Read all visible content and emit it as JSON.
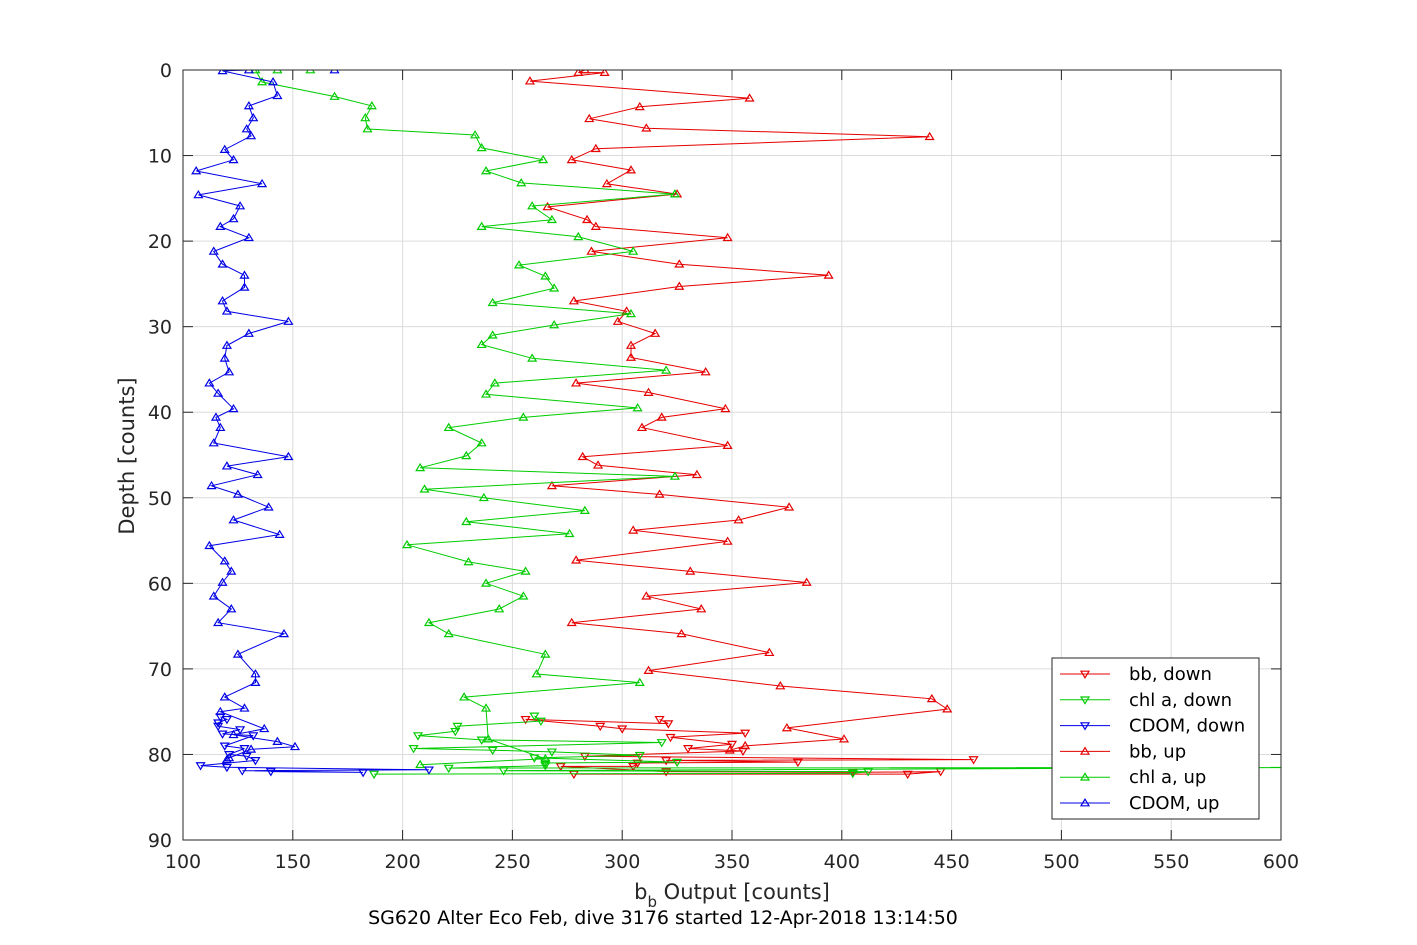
{
  "chart_data": {
    "type": "line",
    "caption": "SG620 Alter Eco Feb, dive 3176 started 12-Apr-2018 13:14:50",
    "xlabel_main": "b",
    "xlabel_sub": "b",
    "xlabel_rest": " Output [counts]",
    "ylabel": "Depth [counts]",
    "xlim": [
      100,
      600
    ],
    "ylim": [
      0,
      90
    ],
    "y_reversed": true,
    "grid": true,
    "xticks": [
      100,
      150,
      200,
      250,
      300,
      350,
      400,
      450,
      500,
      550,
      600
    ],
    "yticks": [
      0,
      10,
      20,
      30,
      40,
      50,
      60,
      70,
      80,
      90
    ],
    "legend_position": "bottom-right",
    "series": [
      {
        "name": "bb, down",
        "color": "#e60000",
        "marker": "triangle-down",
        "x": [
          317,
          321,
          256,
          290,
          300,
          356,
          322,
          350,
          330,
          355,
          283,
          460,
          320,
          380,
          307,
          305,
          272,
          320,
          405,
          445,
          430,
          278
        ],
        "y": [
          75.9,
          76.4,
          75.9,
          76.7,
          77.0,
          77.5,
          78.0,
          78.8,
          79.3,
          79.6,
          80.2,
          80.6,
          80.7,
          80.9,
          81.0,
          81.4,
          81.4,
          82.0,
          82.1,
          82.0,
          82.3,
          82.3
        ]
      },
      {
        "name": "chl a, down",
        "color": "#00cc00",
        "marker": "triangle-down",
        "x": [
          260,
          263,
          225,
          224,
          207,
          236,
          318,
          205,
          241,
          268,
          308,
          260,
          325,
          265,
          265,
          221,
          630,
          246,
          412,
          405,
          187
        ],
        "y": [
          75.5,
          76.1,
          76.7,
          77.3,
          77.8,
          78.3,
          78.6,
          79.3,
          79.5,
          79.7,
          80.1,
          80.4,
          80.9,
          81.0,
          81.3,
          81.6,
          81.5,
          81.9,
          82.0,
          82.2,
          82.3
        ]
      },
      {
        "name": "CDOM, down",
        "color": "#0000e6",
        "marker": "triangle-down",
        "x": [
          117,
          120,
          116,
          116,
          126,
          118,
          132,
          119,
          128,
          121,
          129,
          133,
          108,
          120,
          212,
          127,
          182,
          140
        ],
        "y": [
          75.6,
          75.9,
          76.3,
          76.7,
          77.1,
          77.6,
          77.8,
          79.0,
          79.3,
          80.0,
          80.2,
          80.7,
          81.3,
          81.5,
          81.8,
          81.9,
          82.1,
          82.0
        ]
      },
      {
        "name": "bb, up",
        "color": "#e60000",
        "marker": "triangle-up",
        "x": [
          283,
          280,
          292,
          258,
          358,
          308,
          285,
          311,
          440,
          288,
          277,
          304,
          293,
          325,
          266,
          284,
          288,
          348,
          286,
          326,
          394,
          326,
          278,
          302,
          298,
          315,
          304,
          304,
          338,
          279,
          312,
          347,
          318,
          309,
          348,
          282,
          289,
          334,
          268,
          317,
          376,
          353,
          305,
          348,
          279,
          331,
          384,
          311,
          336,
          277,
          327,
          367,
          312,
          372,
          441,
          448,
          375,
          401,
          356,
          349
        ],
        "y": [
          0,
          0.3,
          0.3,
          1.3,
          3.3,
          4.3,
          5.7,
          6.8,
          7.8,
          9.2,
          10.5,
          11.7,
          13.3,
          14.5,
          16.0,
          17.5,
          18.3,
          19.6,
          21.2,
          22.7,
          24.0,
          25.3,
          27.0,
          28.2,
          29.4,
          30.8,
          32.2,
          33.6,
          35.3,
          36.6,
          37.7,
          39.6,
          40.6,
          41.8,
          43.9,
          45.2,
          46.2,
          47.3,
          48.6,
          49.6,
          51.1,
          52.6,
          53.8,
          55.1,
          57.3,
          58.6,
          59.9,
          61.5,
          63.0,
          64.6,
          65.9,
          68.1,
          70.2,
          72.0,
          73.5,
          74.7,
          76.9,
          78.2,
          79.0,
          79.5
        ]
      },
      {
        "name": "chl a, up",
        "color": "#00cc00",
        "marker": "triangle-up",
        "x": [
          158,
          143,
          133,
          136,
          169,
          186,
          183,
          184,
          233,
          236,
          264,
          238,
          254,
          324,
          259,
          268,
          236,
          280,
          305,
          253,
          265,
          269,
          241,
          304,
          269,
          241,
          236,
          259,
          320,
          242,
          238,
          307,
          255,
          221,
          236,
          229,
          208,
          324,
          210,
          237,
          283,
          229,
          276,
          202,
          230,
          256,
          238,
          255,
          244,
          212,
          221,
          265,
          261,
          308,
          228,
          238,
          239,
          265,
          208
        ],
        "y": [
          0,
          0,
          0,
          1.4,
          3.1,
          4.2,
          5.6,
          6.9,
          7.6,
          9.1,
          10.5,
          11.8,
          13.2,
          14.5,
          15.9,
          17.5,
          18.3,
          19.5,
          21.2,
          22.8,
          24.1,
          25.5,
          27.2,
          28.5,
          29.8,
          31.0,
          32.1,
          33.7,
          35.1,
          36.6,
          37.9,
          39.5,
          40.6,
          41.8,
          43.6,
          45.1,
          46.5,
          47.5,
          49.0,
          50.0,
          51.5,
          52.8,
          54.2,
          55.5,
          57.5,
          58.6,
          60.0,
          61.5,
          63.0,
          64.6,
          65.9,
          68.3,
          70.6,
          71.6,
          73.3,
          74.6,
          78.2,
          80.5,
          81.2
        ]
      },
      {
        "name": "CDOM, up",
        "color": "#0000e6",
        "marker": "triangle-up",
        "x": [
          169,
          130,
          118,
          141,
          143,
          130,
          132,
          129,
          131,
          119,
          123,
          106,
          136,
          107,
          126,
          123,
          117,
          130,
          114,
          118,
          128,
          128,
          118,
          120,
          148,
          130,
          120,
          119,
          121,
          112,
          116,
          123,
          115,
          117,
          114,
          148,
          120,
          134,
          113,
          125,
          139,
          123,
          144,
          112,
          119,
          122,
          118,
          114,
          122,
          116,
          146,
          125,
          133,
          133,
          119,
          128,
          117,
          137,
          123,
          143,
          151,
          131,
          121,
          120
        ],
        "y": [
          0,
          0,
          0.1,
          1.4,
          3.0,
          4.2,
          5.6,
          6.9,
          7.7,
          9.3,
          10.5,
          11.8,
          13.3,
          14.6,
          15.9,
          17.4,
          18.3,
          19.6,
          21.2,
          22.7,
          24.0,
          25.4,
          27.0,
          28.2,
          29.4,
          30.8,
          32.2,
          33.7,
          35.3,
          36.6,
          37.8,
          39.6,
          40.6,
          41.8,
          43.6,
          45.2,
          46.3,
          47.3,
          48.6,
          49.6,
          51.1,
          52.6,
          54.3,
          55.6,
          57.4,
          58.6,
          59.9,
          61.5,
          63.0,
          64.6,
          65.9,
          68.3,
          70.6,
          71.6,
          73.3,
          74.6,
          75.0,
          77.0,
          77.7,
          78.5,
          79.1,
          79.4,
          80.4,
          80.6
        ]
      }
    ]
  }
}
